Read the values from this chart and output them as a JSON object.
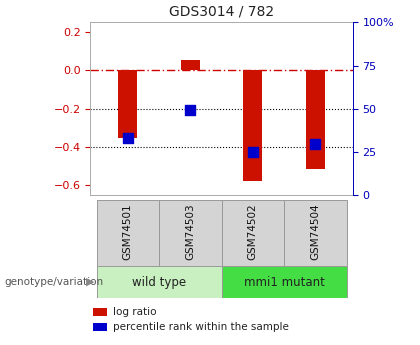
{
  "title": "GDS3014 / 782",
  "samples": [
    "GSM74501",
    "GSM74503",
    "GSM74502",
    "GSM74504"
  ],
  "log_ratios": [
    -0.355,
    0.055,
    -0.575,
    -0.515
  ],
  "percentile_ranks": [
    -0.355,
    -0.205,
    -0.425,
    -0.385
  ],
  "groups": [
    {
      "label": "wild type",
      "samples_idx": [
        0,
        1
      ],
      "color": "#c8f0c0"
    },
    {
      "label": "mmi1 mutant",
      "samples_idx": [
        2,
        3
      ],
      "color": "#44dd44"
    }
  ],
  "bar_color": "#cc1100",
  "dot_color": "#0000cc",
  "ylim_left": [
    -0.65,
    0.25
  ],
  "yticks_left": [
    0.2,
    0.0,
    -0.2,
    -0.4,
    -0.6
  ],
  "yticks_right_labels": [
    "100%",
    "75",
    "50",
    "25",
    "0"
  ],
  "yticks_right_pct": [
    100,
    75,
    50,
    25,
    0
  ],
  "hline_zero_color": "#cc0000",
  "hline_dotted_color": "#000000",
  "bg_color": "#ffffff",
  "bar_width": 0.3,
  "dot_size": 55,
  "legend_log_ratio": "log ratio",
  "legend_percentile": "percentile rank within the sample",
  "group_label": "genotype/variation",
  "left_axis_color": "#cc0000",
  "right_axis_color": "#0000bb"
}
